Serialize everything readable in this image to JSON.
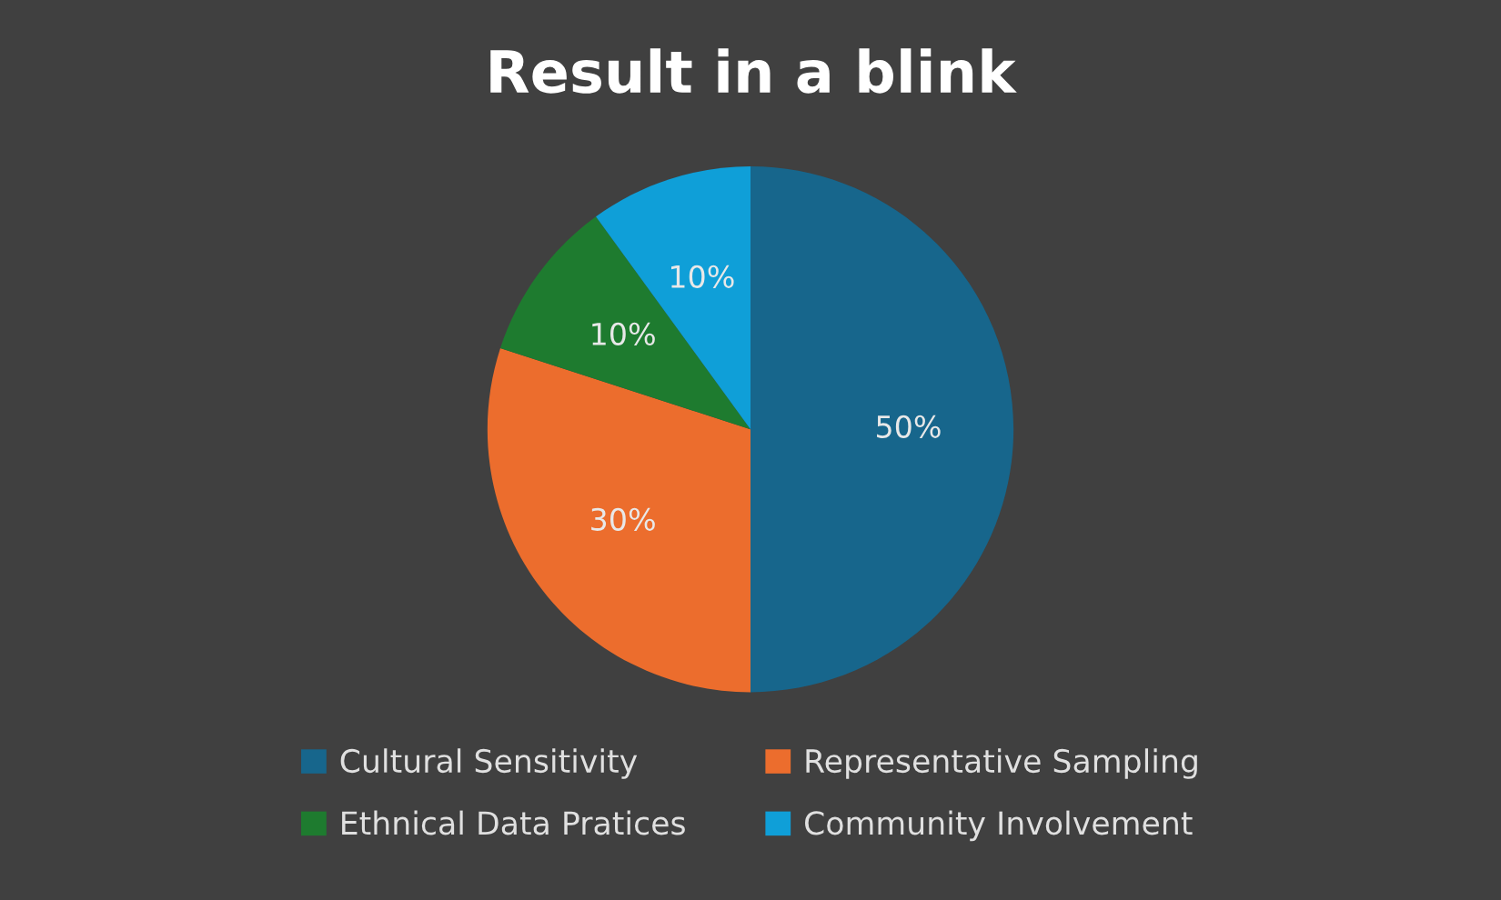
{
  "chart_data": {
    "type": "pie",
    "title": "Result in a blink",
    "categories": [
      "Cultural Sensitivity",
      "Representative Sampling",
      "Ethnical Data Pratices",
      "Community Involvement"
    ],
    "values": [
      50,
      30,
      10,
      10
    ],
    "colors": [
      "#17668c",
      "#ec6d2d",
      "#1e7b2f",
      "#0f9fd8"
    ],
    "value_labels": [
      "50%",
      "30%",
      "10%",
      "10%"
    ],
    "legend": "bottom"
  }
}
